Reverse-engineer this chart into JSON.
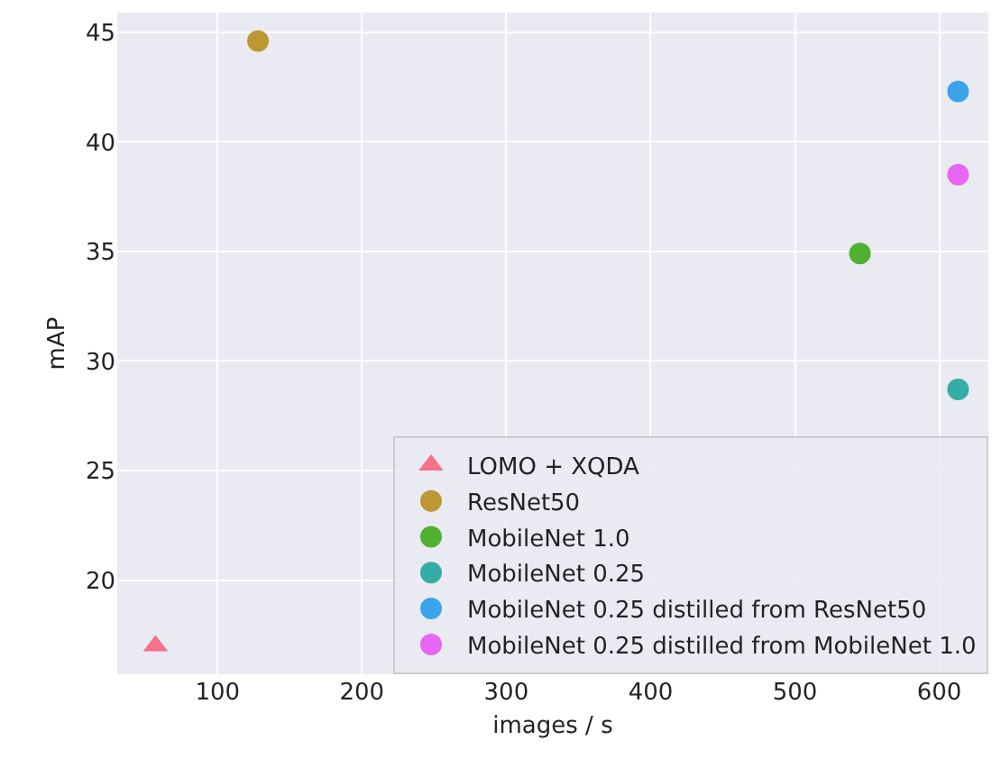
{
  "chart_data": {
    "type": "scatter",
    "xlabel": "images / s",
    "ylabel": "mAP",
    "xlim": [
      30.5,
      634
    ],
    "xticks": [
      100,
      200,
      300,
      400,
      500,
      600
    ],
    "ylim": [
      15.7,
      45.9
    ],
    "yticks": [
      20,
      25,
      30,
      35,
      40,
      45
    ],
    "grid": true,
    "legend": "bottom right",
    "marker": "circle",
    "series": [
      {
        "name": "LOMO + XQDA",
        "color": "#f77189",
        "marker": "triangle",
        "x": [
          57
        ],
        "values": [
          17.0
        ]
      },
      {
        "name": "ResNet50",
        "color": "#bb9832",
        "x": [
          128
        ],
        "values": [
          44.6
        ]
      },
      {
        "name": "MobileNet 1.0",
        "color": "#50b131",
        "x": [
          545
        ],
        "values": [
          34.9
        ]
      },
      {
        "name": "MobileNet 0.25",
        "color": "#36ada4",
        "x": [
          613
        ],
        "values": [
          28.7
        ]
      },
      {
        "name": "MobileNet 0.25 distilled from ResNet50",
        "color": "#3ba3ec",
        "x": [
          613
        ],
        "values": [
          42.3
        ]
      },
      {
        "name": "MobileNet 0.25 distilled from MobileNet 1.0",
        "color": "#e866f4",
        "x": [
          613
        ],
        "values": [
          38.5
        ]
      }
    ]
  }
}
